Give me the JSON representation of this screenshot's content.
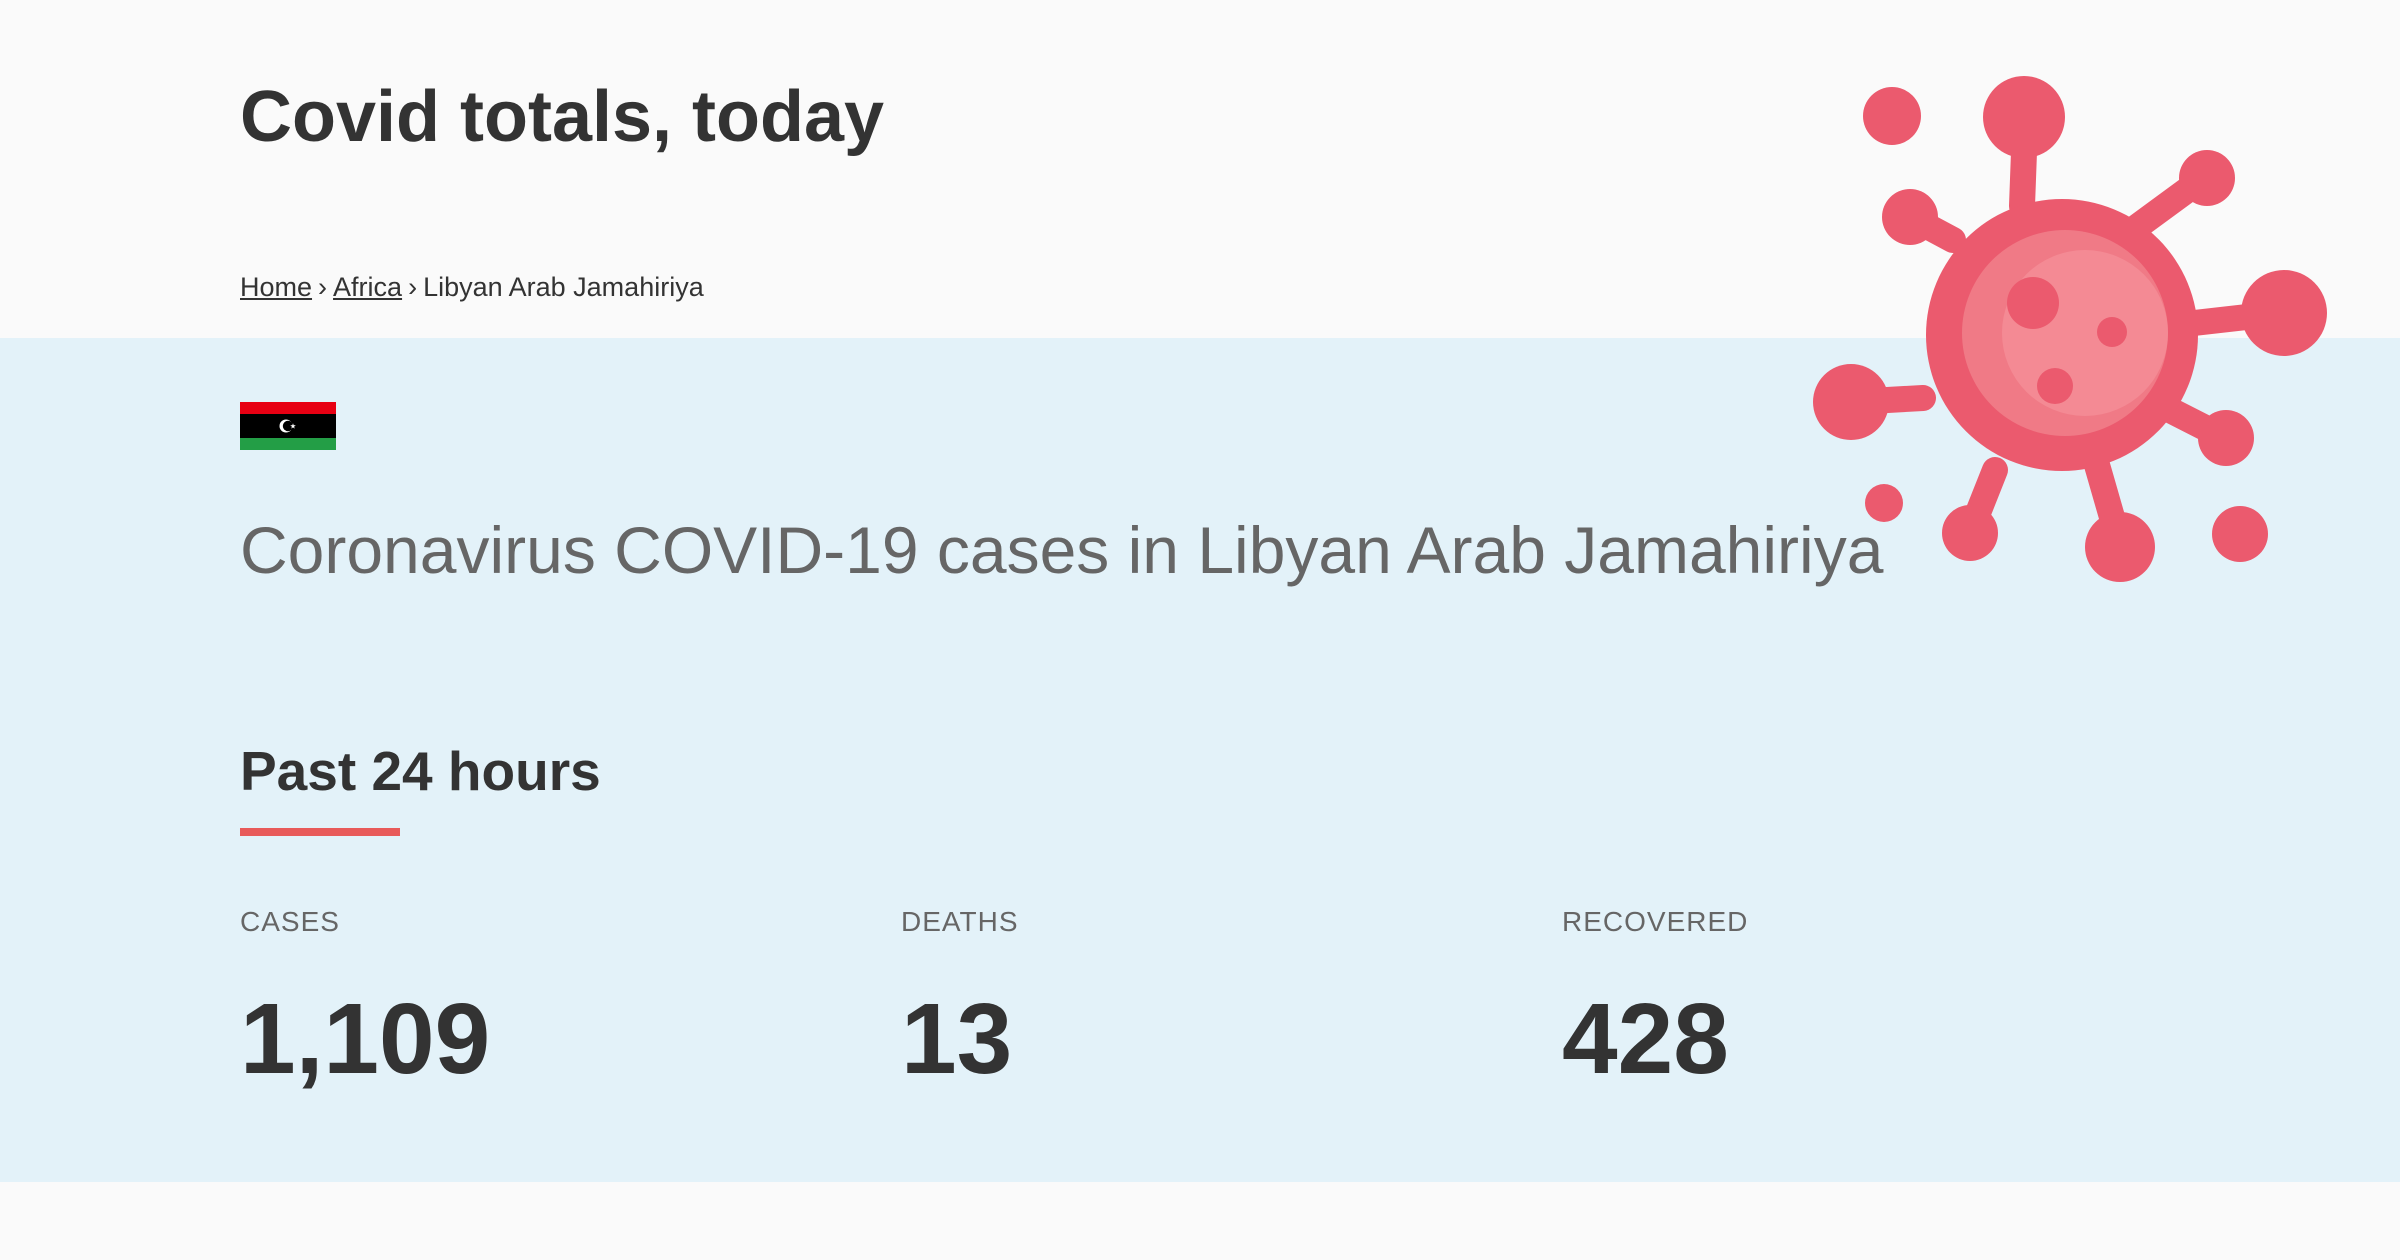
{
  "header": {
    "site_title": "Covid totals, today"
  },
  "breadcrumb": {
    "home": "Home",
    "separator": "›",
    "region": "Africa",
    "current": "Libyan Arab Jamahiriya"
  },
  "country": {
    "heading": "Coronavirus COVID-19 cases in Libyan Arab Jamahiriya",
    "flag_icon": "libya-flag-icon"
  },
  "section": {
    "title": "Past 24 hours"
  },
  "stats": [
    {
      "label": "CASES",
      "value": "1,109"
    },
    {
      "label": "DEATHS",
      "value": "13"
    },
    {
      "label": "RECOVERED",
      "value": "428"
    }
  ],
  "colors": {
    "accent": "#e85a5a",
    "virus": "#eb5a6e",
    "virus_core": "#f48a94",
    "main_background": "#e3f2f9",
    "header_background": "#fafafa"
  },
  "decor": {
    "virus_icon": "coronavirus-icon"
  }
}
